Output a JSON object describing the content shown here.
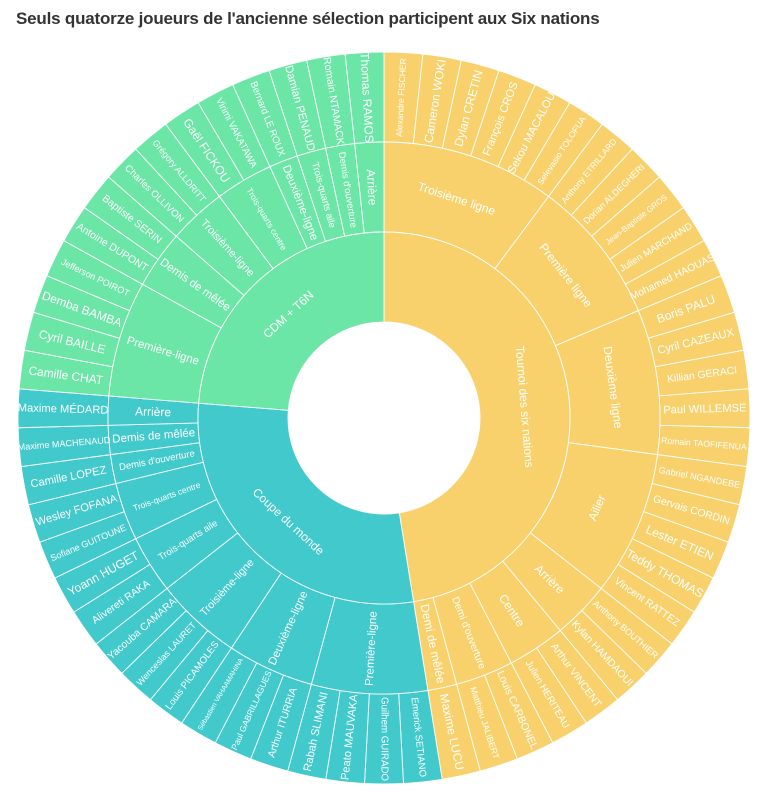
{
  "chart_data": {
    "type": "sunburst",
    "title": "Seuls quatorze joueurs de l'ancienne sélection participent aux Six nations",
    "value_per_player": 1,
    "groups": [
      {
        "label": "Tournoi des six nations",
        "color": "#F8D16C",
        "subgroups": [
          {
            "label": "Troisième ligne",
            "players": [
              "Alexandre FISCHER",
              "Cameron WOKI",
              "Dylan CRETIN",
              "François CROS",
              "Sekou MACALOU",
              "Selevasio TOLOFUA"
            ]
          },
          {
            "label": "Première ligne",
            "players": [
              "Anthony ETRILLARD",
              "Dorian ALDEGHERI",
              "Jean-Baptiste GROS",
              "Julien MARCHAND",
              "Mohamed HAOUAS"
            ]
          },
          {
            "label": "Deuxième ligne",
            "players": [
              "Boris PALU",
              "Cyril CAZEAUX",
              "Killian GERACI",
              "Paul WILLEMSE",
              "Romain TAOFIFENUA"
            ]
          },
          {
            "label": "Ailier",
            "players": [
              "Gabriel NGANDEBE",
              "Gervais CORDIN",
              "Lester ETIEN",
              "Teddy THOMAS",
              "Vincent RATTEZ"
            ]
          },
          {
            "label": "Arrière",
            "players": [
              "Anthony BOUTHIER",
              "Kylan HAMDAOUI"
            ]
          },
          {
            "label": "Centre",
            "players": [
              "Arthur VINCENT",
              "Julien HERITEAU"
            ]
          },
          {
            "label": "Demi d'ouverture",
            "players": [
              "Louis CARBONEL",
              "Matthieu JALIBERT"
            ]
          },
          {
            "label": "Demi de mêlée",
            "players": [
              "Maxime LUCU"
            ]
          }
        ]
      },
      {
        "label": "Coupe du monde",
        "color": "#41C9CC",
        "subgroups": [
          {
            "label": "Première-ligne",
            "players": [
              "Emerick SETIANO",
              "Guilhem GUIRADO",
              "Peato MAUVAKA",
              "Rabah SLIMANI"
            ]
          },
          {
            "label": "Deuxième-ligne",
            "players": [
              "Arthur ITURRIA",
              "Paul GABRILLAGUES",
              "Sébastien VAHAAMAHINA"
            ]
          },
          {
            "label": "Troisième-ligne",
            "players": [
              "Louis PICAMOLES",
              "Wenceslas LAURET",
              "Yacouba CAMARA"
            ]
          },
          {
            "label": "Trois-quarts aile",
            "players": [
              "Alivereti RAKA",
              "Yoann HUGET"
            ]
          },
          {
            "label": "Trois-quarts centre",
            "players": [
              "Sofiane GUITOUNE",
              "Wesley FOFANA"
            ]
          },
          {
            "label": "Demis d'ouverture",
            "players": [
              "Camille LOPEZ"
            ]
          },
          {
            "label": "Demis de mêlée",
            "players": [
              "Maxime MACHENAUD"
            ]
          },
          {
            "label": "Arrière",
            "players": [
              "Maxime MÉDARD"
            ]
          }
        ]
      },
      {
        "label": "CDM + T6N",
        "color": "#6BE6A7",
        "subgroups": [
          {
            "label": "Première-ligne",
            "players": [
              "Camille CHAT",
              "Cyril BAILLE",
              "Demba BAMBA",
              "Jefferson POIROT"
            ]
          },
          {
            "label": "Demis de mêlée",
            "players": [
              "Antoine DUPONT",
              "Baptiste SERIN"
            ]
          },
          {
            "label": "Troisième-ligne",
            "players": [
              "Charles OLLIVON",
              "Grégory ALLDRITT"
            ]
          },
          {
            "label": "Trois-quarts centre",
            "players": [
              "Gaël FICKOU",
              "Virimi VAKATAWA"
            ]
          },
          {
            "label": "Deuxième-ligne",
            "players": [
              "Bernard LE ROUX"
            ]
          },
          {
            "label": "Trois-quarts aile",
            "players": [
              "Damian PENAUD"
            ]
          },
          {
            "label": "Demis d'ouverture",
            "players": [
              "Romain NTAMACK"
            ]
          },
          {
            "label": "Arrière",
            "players": [
              "Thomas RAMOS"
            ]
          }
        ]
      }
    ]
  }
}
